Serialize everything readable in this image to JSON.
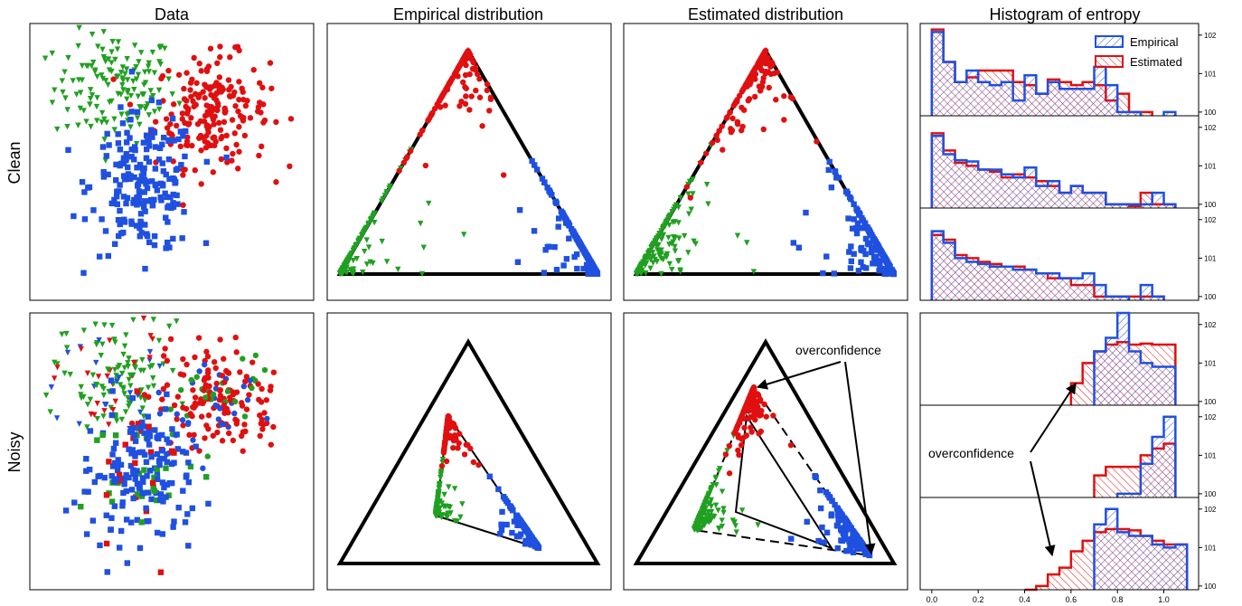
{
  "figure": {
    "column_titles": [
      "Data",
      "Empirical distribution",
      "Estimated distribution",
      "Histogram of entropy"
    ],
    "row_labels": [
      "Clean",
      "Noisy"
    ],
    "annotations": {
      "overconfidence_simplex": "overconfidence",
      "overconfidence_hist": "overconfidence"
    }
  },
  "colors": {
    "class1": "#1f50e0",
    "class2": "#e01010",
    "class3": "#20a020",
    "empirical": "#1f50e0",
    "estimated": "#e01010"
  },
  "chart_data": [
    {
      "type": "scatter",
      "title": "Data",
      "row": "Clean",
      "series": [
        {
          "marker": "triangle-down",
          "color": "green",
          "center": [
            -1.4,
            1.6
          ],
          "spread": [
            0.75,
            0.6
          ],
          "n": 140
        },
        {
          "marker": "circle",
          "color": "red",
          "center": [
            1.0,
            1.1
          ],
          "spread": [
            0.7,
            0.6
          ],
          "n": 200
        },
        {
          "marker": "square",
          "color": "blue",
          "center": [
            -0.7,
            -0.5
          ],
          "spread": [
            0.65,
            0.75
          ],
          "n": 200
        }
      ],
      "xlim": [
        -3.5,
        3.5
      ],
      "ylim": [
        -3,
        3
      ]
    },
    {
      "type": "scatter",
      "title": "Empirical distribution",
      "row": "Clean",
      "simplex": true,
      "series_colors": [
        "green",
        "red",
        "blue"
      ]
    },
    {
      "type": "scatter",
      "title": "Estimated distribution",
      "row": "Clean",
      "simplex": true,
      "series_colors": [
        "green",
        "red",
        "blue"
      ]
    },
    {
      "type": "bar",
      "title": "Histogram of entropy",
      "row": "Clean",
      "yscale": "log",
      "subplots": [
        {
          "bins": [
            0.0,
            0.05,
            0.1,
            0.15,
            0.2,
            0.25,
            0.3,
            0.35,
            0.4,
            0.45,
            0.5,
            0.55,
            0.6,
            0.65,
            0.7,
            0.75,
            0.8,
            0.85,
            0.9,
            0.95,
            1.0,
            1.05,
            1.1
          ],
          "series": [
            {
              "name": "Empirical",
              "values": [
                120,
                20,
                6,
                12,
                6,
                5,
                6,
                2,
                9,
                3,
                6,
                4,
                4,
                4,
                15,
                5,
                1,
                1,
                0,
                0,
                1,
                0
              ]
            },
            {
              "name": "Estimated",
              "values": [
                140,
                20,
                6,
                8,
                12,
                12,
                12,
                6,
                5,
                3,
                7,
                6,
                5,
                6,
                5,
                2,
                3,
                1,
                1,
                0,
                0,
                0
              ]
            }
          ]
        },
        {
          "series": [
            {
              "name": "Empirical",
              "values": [
                60,
                20,
                14,
                13,
                8,
                8,
                6,
                5,
                9,
                3,
                4,
                2,
                3,
                2,
                2,
                1,
                1,
                1,
                1,
                2,
                1,
                0
              ]
            },
            {
              "name": "Estimated",
              "values": [
                70,
                25,
                12,
                10,
                8,
                7,
                5,
                6,
                5,
                4,
                3,
                2,
                3,
                2,
                2,
                1,
                1,
                0.9,
                2,
                1,
                1,
                0
              ]
            }
          ]
        },
        {
          "series": [
            {
              "name": "Empirical",
              "values": [
                50,
                25,
                10,
                8,
                7,
                6,
                6,
                5,
                5,
                4,
                4,
                3,
                3,
                4,
                2,
                1,
                1,
                0,
                2,
                1,
                0,
                0
              ]
            },
            {
              "name": "Estimated",
              "values": [
                40,
                30,
                12,
                10,
                8,
                7,
                6,
                6,
                5,
                4,
                3,
                3,
                2,
                2,
                1,
                1,
                1,
                1,
                1,
                1,
                0,
                0
              ]
            }
          ]
        }
      ],
      "legend": {
        "position": "top-right",
        "entries": [
          "Empirical",
          "Estimated"
        ]
      },
      "y_tick_labels": [
        "10^0",
        "10^1",
        "10^2"
      ]
    },
    {
      "type": "scatter",
      "title": "Data",
      "row": "Noisy",
      "label_noise": true
    },
    {
      "type": "scatter",
      "title": "Empirical distribution",
      "row": "Noisy",
      "simplex": true
    },
    {
      "type": "scatter",
      "title": "Estimated distribution",
      "row": "Noisy",
      "simplex": true
    },
    {
      "type": "bar",
      "title": "Histogram of entropy",
      "row": "Noisy",
      "yscale": "log",
      "subplots": [
        {
          "series": [
            {
              "name": "Empirical",
              "values": [
                0,
                0,
                0,
                0,
                0,
                0,
                0,
                0,
                0,
                0,
                0,
                0,
                0,
                0,
                20,
                45,
                200,
                20,
                10,
                8,
                8,
                0
              ]
            },
            {
              "name": "Estimated",
              "values": [
                0,
                0,
                0,
                0,
                0,
                0,
                0,
                0,
                0,
                0,
                0,
                0,
                3,
                10,
                20,
                30,
                35,
                30,
                32,
                30,
                30,
                0
              ]
            }
          ]
        },
        {
          "series": [
            {
              "name": "Empirical",
              "values": [
                0,
                0,
                0,
                0,
                0,
                0,
                0,
                0,
                0,
                0,
                0,
                0,
                0,
                0,
                0,
                0,
                1,
                1,
                6,
                30,
                100,
                0
              ]
            },
            {
              "name": "Estimated",
              "values": [
                0,
                0,
                0,
                0,
                0,
                0,
                0,
                0,
                0,
                0,
                0,
                0,
                0,
                0,
                3,
                5,
                5,
                5,
                10,
                15,
                20,
                0
              ]
            }
          ]
        },
        {
          "series": [
            {
              "name": "Empirical",
              "values": [
                0,
                0,
                0,
                0,
                0,
                0,
                0,
                0,
                0,
                0,
                0,
                0,
                0,
                0,
                40,
                100,
                25,
                20,
                20,
                12,
                10,
                12
              ]
            },
            {
              "name": "Estimated",
              "values": [
                0,
                0,
                0,
                0,
                0,
                0,
                0,
                0,
                0.01,
                1,
                2,
                3,
                8,
                15,
                25,
                30,
                30,
                28,
                20,
                15,
                12,
                12
              ]
            }
          ]
        }
      ],
      "x_tick_labels": [
        "0.0",
        "0.2",
        "0.4",
        "0.6",
        "0.8",
        "1.0"
      ],
      "y_tick_labels": [
        "10^0",
        "10^1",
        "10^2"
      ]
    }
  ]
}
